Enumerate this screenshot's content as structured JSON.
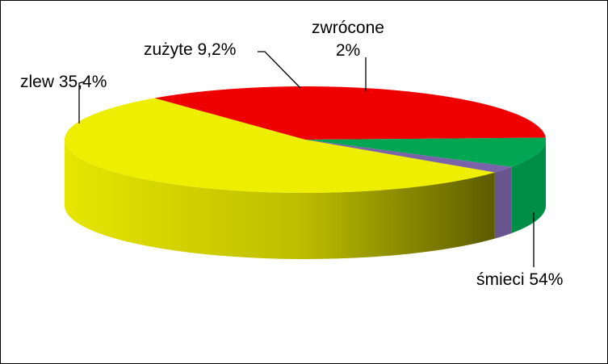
{
  "chart_data": {
    "type": "pie",
    "style": "3d",
    "legend": "none",
    "slices": [
      {
        "label": "śmieci",
        "value": 54,
        "display": "śmieci 54%",
        "color": "#EEEE00"
      },
      {
        "label": "zlew",
        "value": 35.4,
        "display": "zlew 35,4%",
        "color": "#EE0000"
      },
      {
        "label": "zużyte",
        "value": 9.2,
        "display": "zużyte 9,2%",
        "color": "#00A651"
      },
      {
        "label": "zwrócone",
        "value": 2,
        "display_line1": "zwrócone",
        "display_line2": "2%",
        "color": "#7A63A8"
      }
    ]
  }
}
